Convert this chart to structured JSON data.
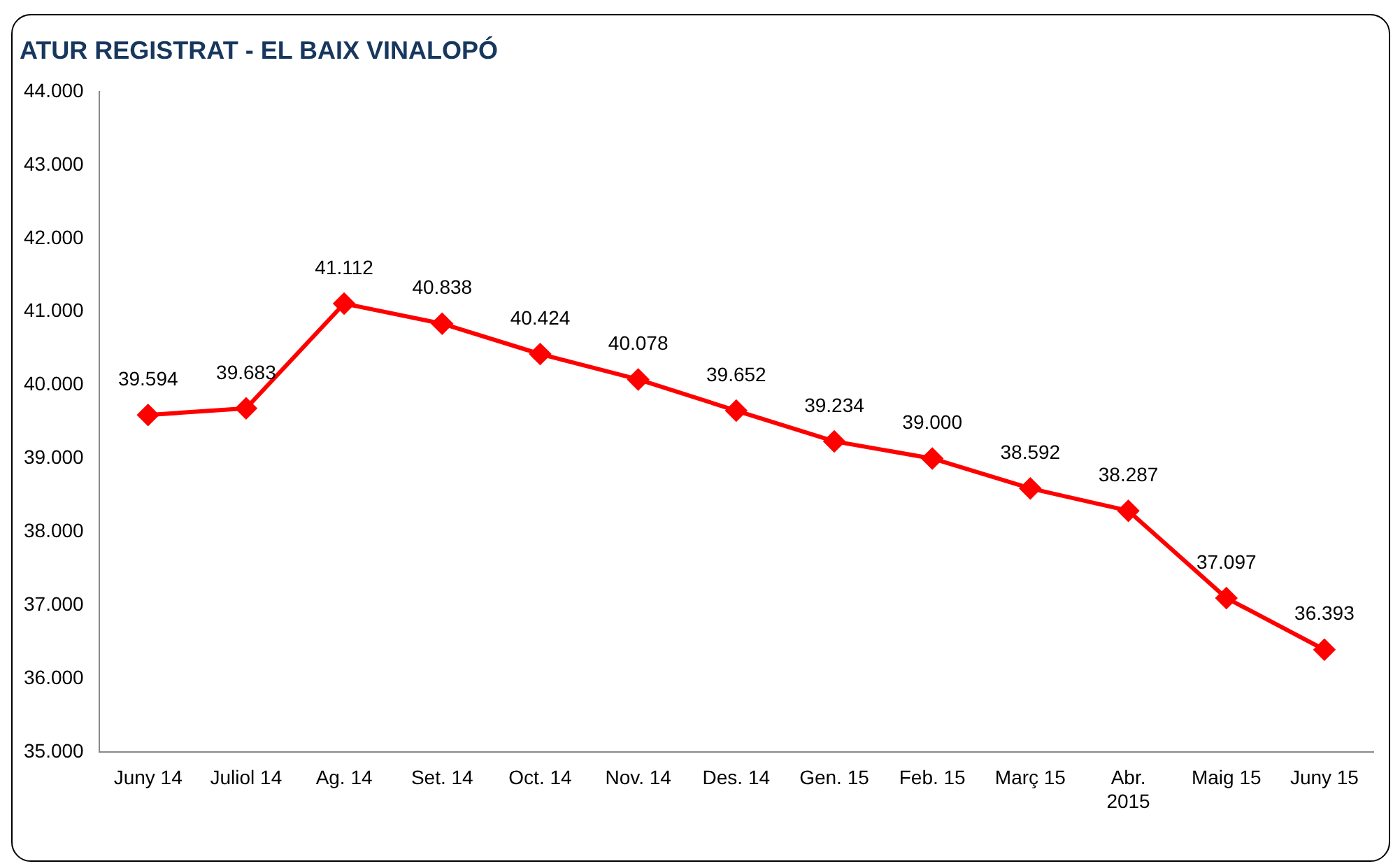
{
  "chart_data": {
    "type": "line",
    "title": "ATUR REGISTRAT - EL BAIX VINALOPÓ",
    "categories": [
      "Juny 14",
      "Juliol 14",
      "Ag. 14",
      "Set. 14",
      "Oct. 14",
      "Nov. 14",
      "Des. 14",
      "Gen. 15",
      "Feb. 15",
      "Març 15",
      "Abr. 2015",
      "Maig 15",
      "Juny 15"
    ],
    "series": [
      {
        "color": "#ff0000",
        "values": [
          39594,
          39683,
          41112,
          40838,
          40424,
          40078,
          39652,
          39234,
          39000,
          38592,
          38287,
          37097,
          36393
        ],
        "value_labels": [
          "39.594",
          "39.683",
          "41.112",
          "40.838",
          "40.424",
          "40.078",
          "39.652",
          "39.234",
          "39.000",
          "38.592",
          "38.287",
          "37.097",
          "36.393"
        ]
      }
    ],
    "ylim": [
      35000,
      44000
    ],
    "yticks": [
      {
        "value": 35000,
        "label": "35.000"
      },
      {
        "value": 36000,
        "label": "36.000"
      },
      {
        "value": 37000,
        "label": "37.000"
      },
      {
        "value": 38000,
        "label": "38.000"
      },
      {
        "value": 39000,
        "label": "39.000"
      },
      {
        "value": 40000,
        "label": "40.000"
      },
      {
        "value": 41000,
        "label": "41.000"
      },
      {
        "value": 42000,
        "label": "42.000"
      },
      {
        "value": 43000,
        "label": "43.000"
      },
      {
        "value": 44000,
        "label": "44.000"
      }
    ],
    "grid": false,
    "legend": false,
    "marker": "diamond",
    "line_style": "solid"
  }
}
